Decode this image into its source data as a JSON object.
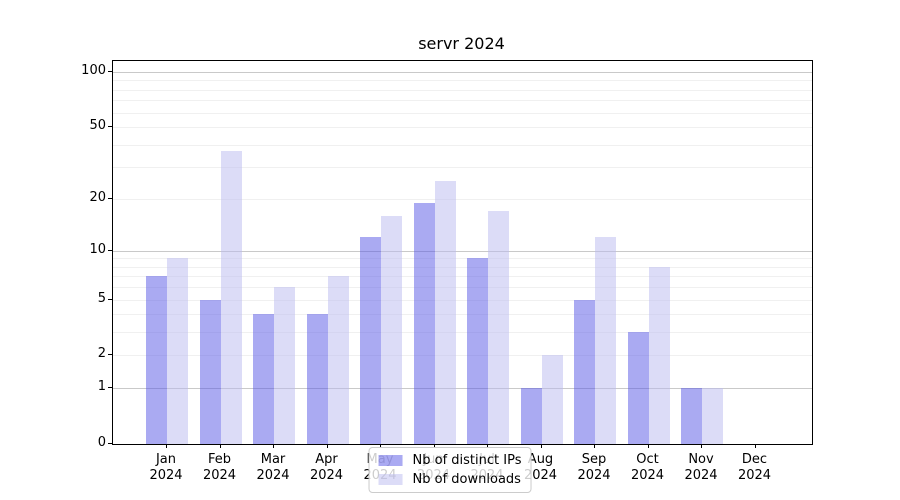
{
  "chart_data": {
    "type": "bar",
    "title": "servr 2024",
    "categories": [
      "Jan",
      "Feb",
      "Mar",
      "Apr",
      "May",
      "Jun",
      "Jul",
      "Aug",
      "Sep",
      "Oct",
      "Nov",
      "Dec"
    ],
    "year": "2024",
    "series": [
      {
        "name": "Nb of distinct IPs",
        "fill": "rgba(85,85,229,0.5)",
        "solid_hex": "#aaaaf2",
        "values": [
          7,
          5,
          4,
          4,
          12,
          19,
          9,
          1,
          5,
          3,
          1,
          0
        ]
      },
      {
        "name": "Nb of downloads",
        "fill": "rgba(185,185,240,0.5)",
        "solid_hex": "#dcdcf8",
        "values": [
          9,
          37,
          6,
          7,
          16,
          25,
          17,
          2,
          12,
          8,
          1,
          0
        ]
      }
    ],
    "yscale": "log1p",
    "ylim": [
      0,
      115
    ],
    "yticks": [
      0,
      1,
      2,
      5,
      10,
      20,
      50,
      100
    ],
    "major_gridlines": [
      1,
      10,
      100
    ],
    "minor_gridlines": [
      2,
      3,
      4,
      5,
      6,
      7,
      8,
      9,
      20,
      30,
      40,
      50,
      60,
      70,
      80,
      90
    ],
    "grid": "on",
    "legend_position": "lower center",
    "colors": {
      "axis": "#000000",
      "major_grid": "#c9c9c9",
      "minor_grid": "#f0f0f0",
      "background": "#ffffff"
    }
  }
}
